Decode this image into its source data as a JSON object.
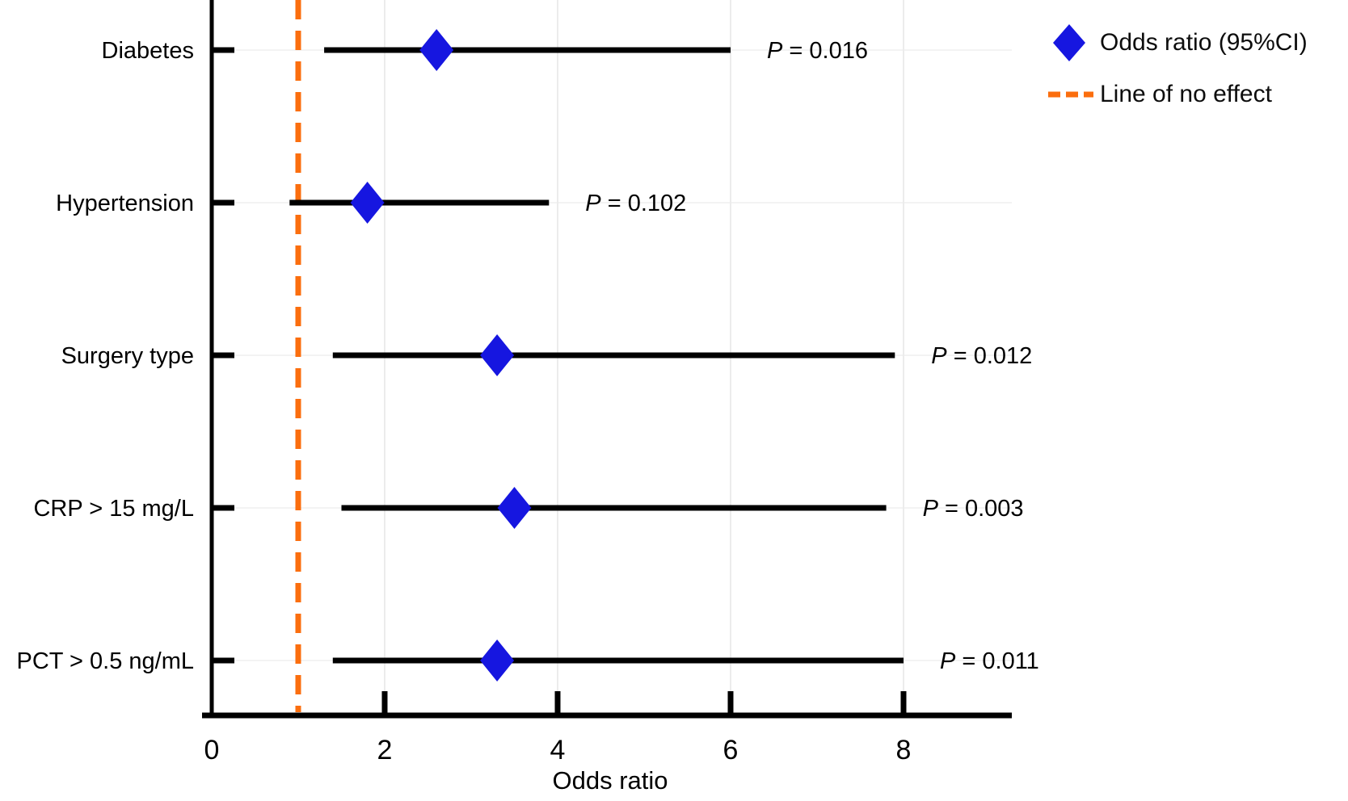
{
  "chart_data": {
    "type": "forest",
    "title": "",
    "xlabel": "Odds ratio",
    "ylabel": "",
    "x_ticks": [
      "0",
      "2",
      "4",
      "6",
      "8"
    ],
    "x_tick_values": [
      0,
      2,
      4,
      6,
      8
    ],
    "xlim": [
      0,
      9.25
    ],
    "grid": true,
    "no_effect_x": 1,
    "rows": [
      {
        "label": "Diabetes",
        "or": 2.6,
        "ci_low": 1.3,
        "ci_high": 6.0,
        "p_text": "P = 0.016"
      },
      {
        "label": "Hypertension",
        "or": 1.8,
        "ci_low": 0.9,
        "ci_high": 3.9,
        "p_text": "P = 0.102"
      },
      {
        "label": "Surgery type",
        "or": 3.3,
        "ci_low": 1.4,
        "ci_high": 7.9,
        "p_text": "P = 0.012"
      },
      {
        "label": "CRP > 15 mg/L",
        "or": 3.5,
        "ci_low": 1.5,
        "ci_high": 7.8,
        "p_text": "P = 0.003"
      },
      {
        "label": "PCT > 0.5 ng/mL",
        "or": 3.3,
        "ci_low": 1.4,
        "ci_high": 8.0,
        "p_text": "P = 0.011"
      }
    ],
    "legend_position": "top-right",
    "legend": [
      {
        "label": "Odds ratio (95%CI)",
        "marker": "diamond"
      },
      {
        "label": "Line of no effect",
        "marker": "dashed-line"
      }
    ],
    "colors": {
      "marker_blue": "#1616e0",
      "no_effect_orange": "#fb6e0e",
      "axis_black": "#000000",
      "grid_vertical": "#ececec",
      "grid_horizontal": "#f3f3f3",
      "text": "#000000"
    }
  }
}
